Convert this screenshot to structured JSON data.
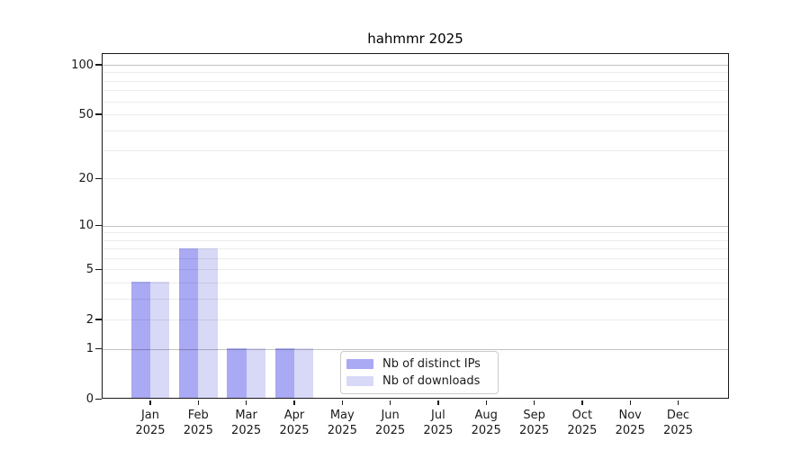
{
  "chart_data": {
    "type": "bar",
    "title": "hahmmr 2025",
    "categories": [
      {
        "month": "Jan",
        "year": "2025"
      },
      {
        "month": "Feb",
        "year": "2025"
      },
      {
        "month": "Mar",
        "year": "2025"
      },
      {
        "month": "Apr",
        "year": "2025"
      },
      {
        "month": "May",
        "year": "2025"
      },
      {
        "month": "Jun",
        "year": "2025"
      },
      {
        "month": "Jul",
        "year": "2025"
      },
      {
        "month": "Aug",
        "year": "2025"
      },
      {
        "month": "Sep",
        "year": "2025"
      },
      {
        "month": "Oct",
        "year": "2025"
      },
      {
        "month": "Nov",
        "year": "2025"
      },
      {
        "month": "Dec",
        "year": "2025"
      }
    ],
    "series": [
      {
        "name": "Nb of distinct IPs",
        "color": "#a9a9f4",
        "values": [
          4,
          7,
          1,
          1,
          0,
          0,
          0,
          0,
          0,
          0,
          0,
          0
        ]
      },
      {
        "name": "Nb of downloads",
        "color": "#d8d8f7",
        "values": [
          4,
          7,
          1,
          1,
          0,
          0,
          0,
          0,
          0,
          0,
          0,
          0
        ]
      }
    ],
    "y_axis": {
      "scale": "log1p",
      "tick_labels": [
        "0",
        "1",
        "2",
        "5",
        "10",
        "20",
        "50",
        "100"
      ],
      "ticks": [
        0,
        1,
        2,
        5,
        10,
        20,
        50,
        100
      ],
      "major_gridlines": [
        1,
        10,
        100
      ],
      "minor_gridlines": [
        2,
        3,
        4,
        5,
        6,
        7,
        8,
        9,
        20,
        30,
        40,
        50,
        60,
        70,
        80,
        90
      ],
      "range": [
        0,
        116
      ]
    },
    "legend": {
      "position": "lower-center-inside",
      "entries": [
        "Nb of distinct IPs",
        "Nb of downloads"
      ]
    },
    "grid": true
  }
}
